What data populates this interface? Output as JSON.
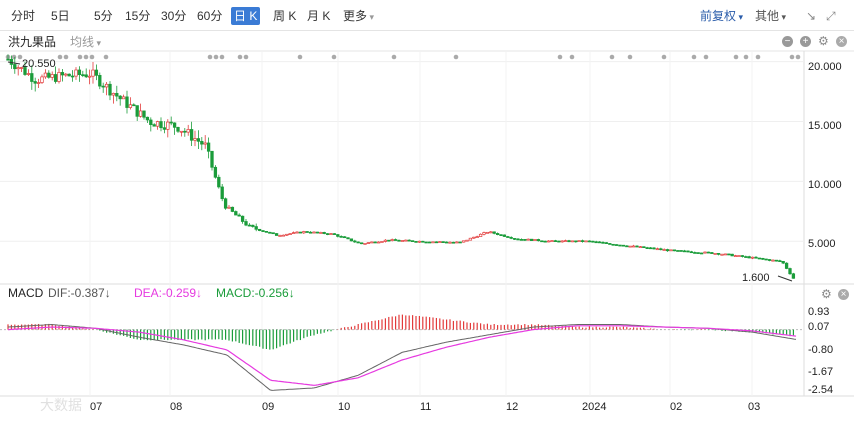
{
  "toolbar": {
    "periods": [
      "分时",
      "5日",
      "5分",
      "15分",
      "30分",
      "60分",
      "日 K",
      "周 K",
      "月 K",
      "更多"
    ],
    "active_period": "日 K",
    "adjust_label": "前复权",
    "other_label": "其他"
  },
  "main_panel": {
    "symbol": "洪九果品",
    "ma_label": "均线",
    "y_ticks": [
      "20.000",
      "15.000",
      "10.000",
      "5.000"
    ],
    "high_label": "20.550",
    "low_label": "1.600"
  },
  "macd_panel": {
    "title": "MACD",
    "dif_label": "DIF:-0.387↓",
    "dea_label": "DEA:-0.259↓",
    "macd_label": "MACD:-0.256↓",
    "y_ticks": [
      "0.93",
      "0.07",
      "-0.80",
      "-1.67",
      "-2.54"
    ]
  },
  "x_axis": [
    "07",
    "08",
    "09",
    "10",
    "11",
    "12",
    "2024",
    "02",
    "03"
  ],
  "watermark": "大数据",
  "colors": {
    "up": "#e23b3b",
    "down": "#1a9c3a",
    "dif": "#666666",
    "dea": "#e63ae0",
    "accent": "#3a7bd5"
  },
  "chart_data": {
    "type": "candlestick",
    "price_ylim": [
      1.6,
      20.55
    ],
    "price_path": [
      [
        "2023-06-15",
        20.2
      ],
      [
        "2023-06-25",
        18.5
      ],
      [
        "2023-07-05",
        18.8
      ],
      [
        "2023-07-15",
        19.0
      ],
      [
        "2023-07-25",
        17.0
      ],
      [
        "2023-08-05",
        15.0
      ],
      [
        "2023-08-15",
        14.6
      ],
      [
        "2023-08-25",
        13.0
      ],
      [
        "2023-09-01",
        8.0
      ],
      [
        "2023-09-10",
        6.2
      ],
      [
        "2023-09-20",
        5.5
      ],
      [
        "2023-09-30",
        5.8
      ],
      [
        "2023-10-10",
        5.6
      ],
      [
        "2023-10-20",
        4.8
      ],
      [
        "2023-10-30",
        5.1
      ],
      [
        "2023-11-10",
        5.0
      ],
      [
        "2023-11-25",
        4.9
      ],
      [
        "2023-12-05",
        5.8
      ],
      [
        "2023-12-15",
        5.2
      ],
      [
        "2023-12-28",
        5.0
      ],
      [
        "2024-01-10",
        5.0
      ],
      [
        "2024-01-25",
        4.6
      ],
      [
        "2024-02-10",
        4.2
      ],
      [
        "2024-02-25",
        4.0
      ],
      [
        "2024-03-10",
        3.6
      ],
      [
        "2024-03-20",
        3.3
      ],
      [
        "2024-03-25",
        1.6
      ]
    ],
    "macd_ylim": [
      -2.54,
      0.93
    ],
    "dif_path": [
      0.1,
      0.2,
      0.05,
      -0.3,
      -0.6,
      -1.0,
      -2.4,
      -2.3,
      -1.8,
      -0.9,
      -0.5,
      -0.2,
      0.1,
      0.2,
      0.2,
      0.1,
      0.05,
      -0.1,
      -0.387
    ],
    "dea_path": [
      0.0,
      0.1,
      0.05,
      -0.1,
      -0.4,
      -0.8,
      -2.0,
      -2.2,
      -1.9,
      -1.2,
      -0.7,
      -0.3,
      0.0,
      0.15,
      0.15,
      0.1,
      0.05,
      -0.05,
      -0.259
    ]
  }
}
